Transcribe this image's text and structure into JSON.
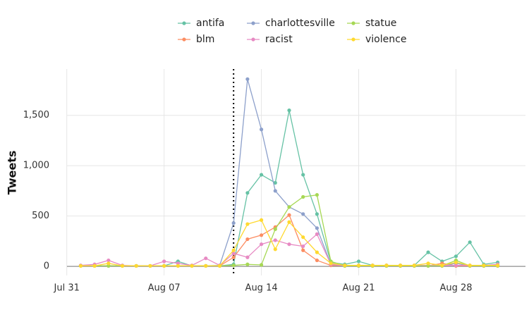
{
  "chart_data": {
    "type": "line",
    "y_label": "Tweets",
    "x": [
      "Aug 01",
      "Aug 02",
      "Aug 03",
      "Aug 04",
      "Aug 05",
      "Aug 06",
      "Aug 07",
      "Aug 08",
      "Aug 09",
      "Aug 10",
      "Aug 11",
      "Aug 12",
      "Aug 13",
      "Aug 14",
      "Aug 15",
      "Aug 16",
      "Aug 17",
      "Aug 18",
      "Aug 19",
      "Aug 20",
      "Aug 21",
      "Aug 22",
      "Aug 23",
      "Aug 24",
      "Aug 25",
      "Aug 26",
      "Aug 27",
      "Aug 28",
      "Aug 29",
      "Aug 30",
      "Aug 31"
    ],
    "series": [
      {
        "name": "antifa",
        "color": "#66c2a5",
        "values": [
          5,
          5,
          5,
          5,
          5,
          5,
          5,
          50,
          5,
          5,
          5,
          20,
          730,
          910,
          830,
          1550,
          910,
          520,
          40,
          20,
          50,
          10,
          10,
          10,
          10,
          140,
          50,
          100,
          240,
          20,
          40
        ]
      },
      {
        "name": "blm",
        "color": "#fc8d62",
        "values": [
          5,
          5,
          5,
          5,
          5,
          5,
          5,
          5,
          5,
          5,
          5,
          90,
          270,
          310,
          390,
          510,
          160,
          60,
          10,
          5,
          5,
          5,
          5,
          5,
          5,
          5,
          30,
          5,
          5,
          5,
          5
        ]
      },
      {
        "name": "charlottesville",
        "color": "#8da0cb",
        "values": [
          5,
          5,
          5,
          5,
          5,
          5,
          5,
          5,
          5,
          5,
          10,
          430,
          1860,
          1360,
          750,
          590,
          520,
          380,
          20,
          5,
          5,
          5,
          5,
          5,
          5,
          5,
          5,
          30,
          5,
          5,
          10
        ]
      },
      {
        "name": "racist",
        "color": "#e78ac3",
        "values": [
          10,
          20,
          60,
          10,
          5,
          5,
          50,
          30,
          10,
          80,
          10,
          130,
          90,
          220,
          260,
          220,
          200,
          320,
          20,
          10,
          10,
          10,
          10,
          10,
          10,
          10,
          10,
          10,
          10,
          10,
          20
        ]
      },
      {
        "name": "statue",
        "color": "#a6d854",
        "values": [
          5,
          5,
          5,
          5,
          5,
          5,
          5,
          5,
          5,
          5,
          5,
          10,
          20,
          15,
          370,
          590,
          690,
          710,
          50,
          5,
          5,
          5,
          5,
          5,
          5,
          5,
          5,
          60,
          5,
          5,
          5
        ]
      },
      {
        "name": "violence",
        "color": "#ffd92f",
        "values": [
          5,
          5,
          30,
          5,
          5,
          5,
          5,
          5,
          5,
          5,
          5,
          160,
          420,
          460,
          170,
          440,
          290,
          140,
          30,
          10,
          10,
          10,
          10,
          10,
          10,
          30,
          10,
          40,
          10,
          10,
          10
        ]
      }
    ],
    "vline": "Aug 12",
    "xlim": [
      "Jul 30",
      "Sep 02"
    ],
    "xticks": [
      "Jul 31",
      "Aug 07",
      "Aug 14",
      "Aug 21",
      "Aug 28"
    ],
    "ylim": [
      -90,
      1960
    ],
    "yticks": [
      0,
      500,
      {
        "value": 1000,
        "label": "1,000"
      },
      {
        "value": 1500,
        "label": "1,500"
      }
    ],
    "grid": true,
    "legend": "top"
  }
}
